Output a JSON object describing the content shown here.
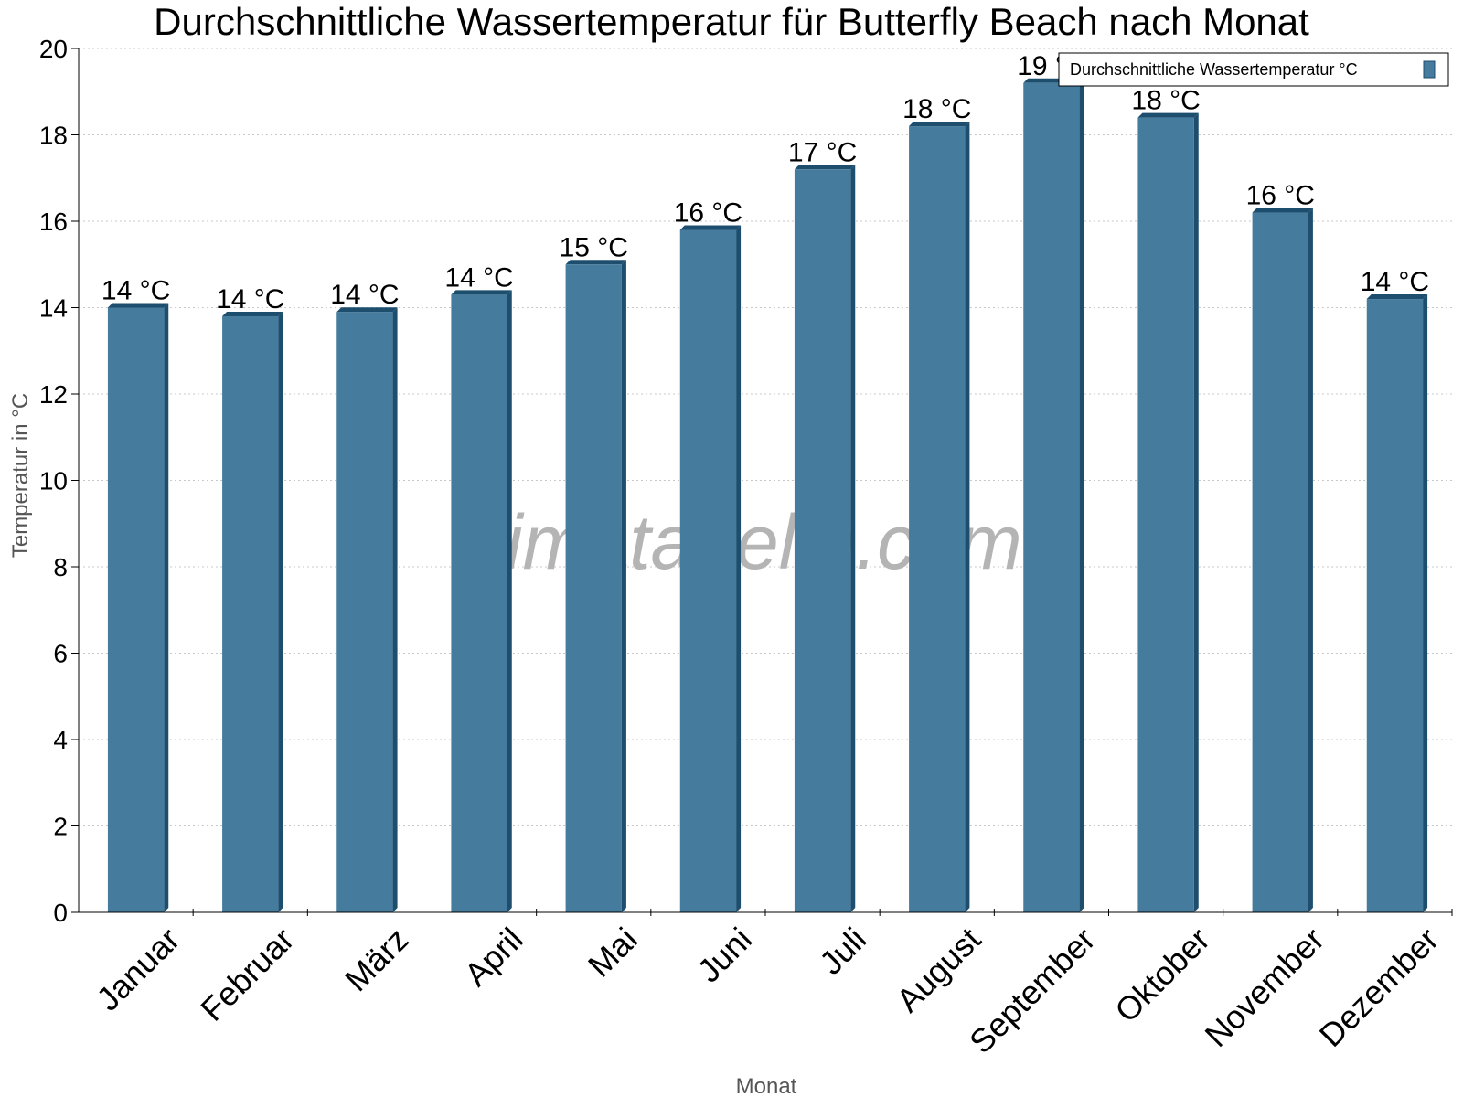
{
  "chart_data": {
    "type": "bar",
    "title": "Durchschnittliche Wassertemperatur für Butterfly Beach nach Monat",
    "xlabel": "Monat",
    "ylabel": "Temperatur in °C",
    "categories": [
      "Januar",
      "Februar",
      "März",
      "April",
      "Mai",
      "Juni",
      "Juli",
      "August",
      "September",
      "Oktober",
      "November",
      "Dezember"
    ],
    "series": [
      {
        "name": "Durchschnittliche Wassertemperatur °C",
        "values": [
          14.0,
          13.8,
          13.9,
          14.3,
          15.0,
          15.8,
          17.2,
          18.2,
          19.2,
          18.4,
          16.2,
          14.2
        ],
        "labels": [
          "14 °C",
          "14 °C",
          "14 °C",
          "14 °C",
          "15 °C",
          "16 °C",
          "17 °C",
          "18 °C",
          "19 °C",
          "18 °C",
          "16 °C",
          "14 °C"
        ],
        "color": "#457b9d"
      }
    ],
    "ylim": [
      0,
      20
    ],
    "yticks": [
      0,
      2,
      4,
      6,
      8,
      10,
      12,
      14,
      16,
      18,
      20
    ],
    "grid": true,
    "legend_position": "top-right"
  },
  "watermark": "klimatabelle.com",
  "colors": {
    "bar": "#457b9d",
    "bar_edge": "#1d4e6e",
    "grid": "#c8c8c8",
    "axis": "#000000"
  }
}
